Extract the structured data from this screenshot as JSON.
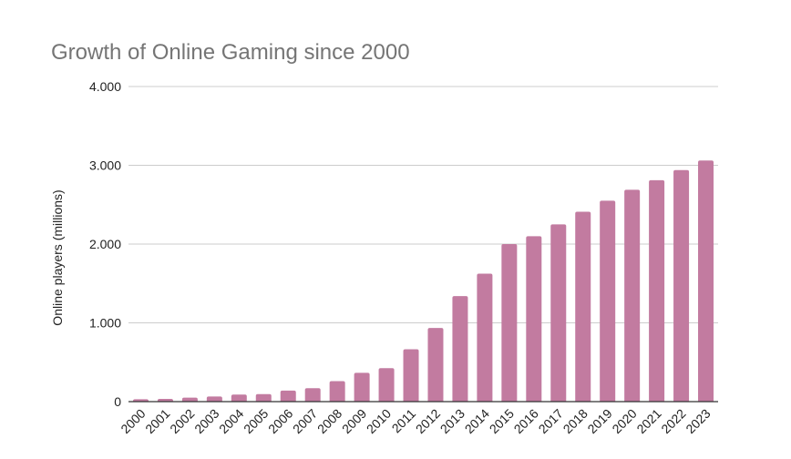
{
  "chart_data": {
    "type": "bar",
    "title": "Growth of Online Gaming since 2000",
    "xlabel": "",
    "ylabel": "Online players (millions)",
    "ylim": [
      0,
      4000
    ],
    "yticks": [
      0,
      1000,
      2000,
      3000,
      4000
    ],
    "ytick_labels": [
      "0",
      "1.000",
      "2.000",
      "3.000",
      "4.000"
    ],
    "grid": true,
    "legend": "none",
    "bar_color": "#c27ba0",
    "categories": [
      "2000",
      "2001",
      "2002",
      "2003",
      "2004",
      "2005",
      "2006",
      "2007",
      "2008",
      "2009",
      "2010",
      "2011",
      "2012",
      "2013",
      "2014",
      "2015",
      "2016",
      "2017",
      "2018",
      "2019",
      "2020",
      "2021",
      "2022",
      "2023"
    ],
    "values": [
      30,
      35,
      50,
      65,
      90,
      95,
      140,
      170,
      260,
      365,
      425,
      665,
      935,
      1340,
      1625,
      2000,
      2100,
      2250,
      2410,
      2550,
      2690,
      2810,
      2940,
      3060
    ]
  }
}
